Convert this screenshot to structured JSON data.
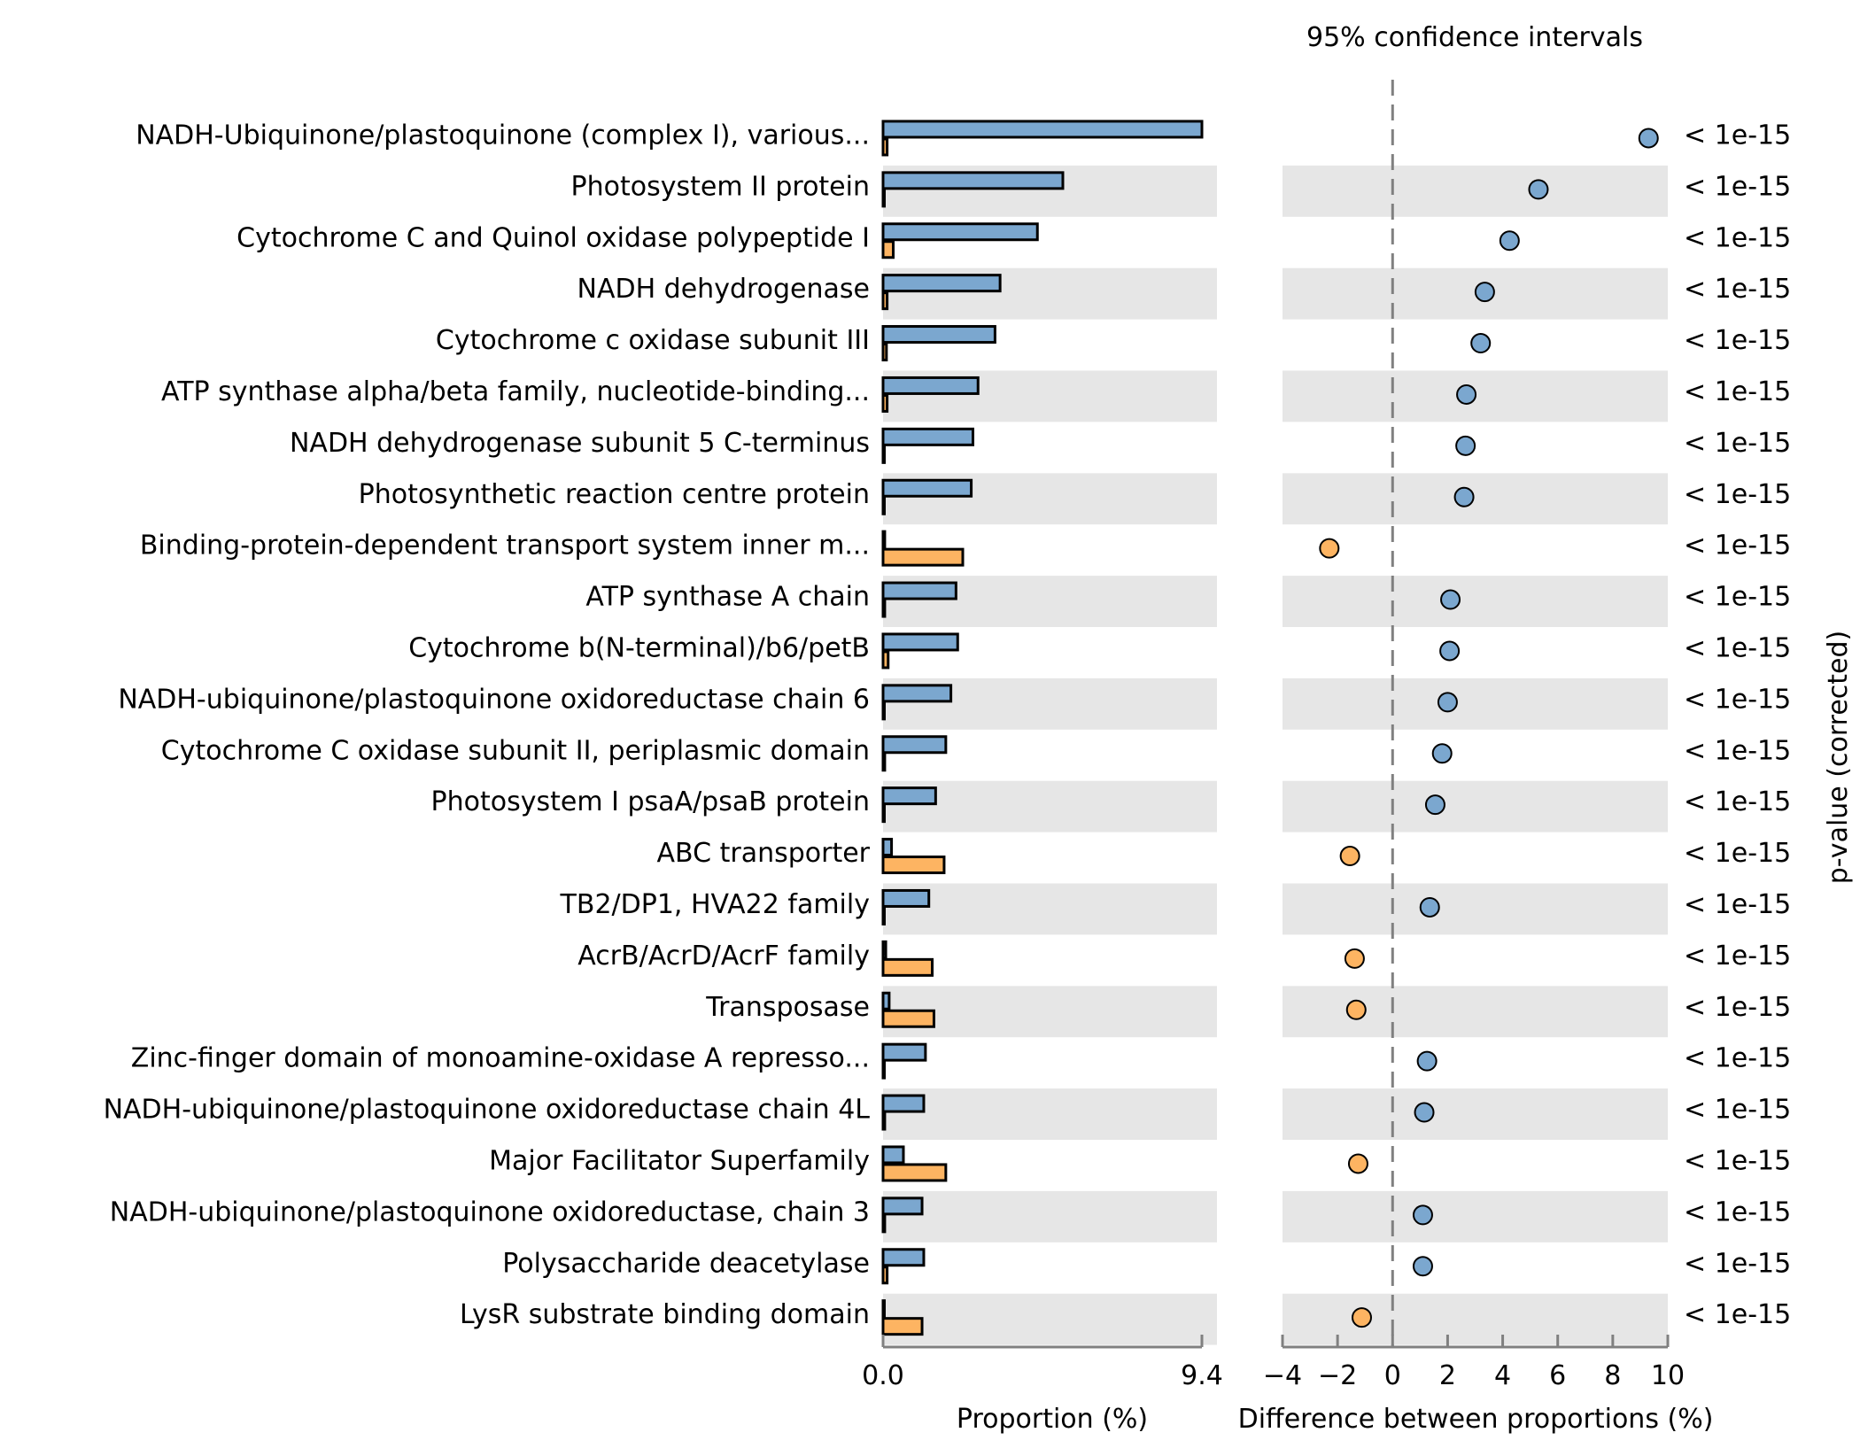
{
  "chart_data": {
    "type": "bar",
    "title": "95% confidence intervals",
    "left_xlabel": "Proportion (%)",
    "right_xlabel": "Difference between proportions (%)",
    "right_ylabel": "p-value (corrected)",
    "left_xticks": [
      "0.0",
      "9.4"
    ],
    "left_xlim": [
      0,
      9.4
    ],
    "right_xticks": [
      "−4",
      "−2",
      "0",
      "2",
      "4",
      "6",
      "8",
      "10"
    ],
    "right_xlim": [
      -4,
      10
    ],
    "colors": {
      "group_a": "#7ba7cf",
      "group_b": "#fdb462",
      "shade": "#e6e6e6",
      "zero_line": "#808080"
    },
    "categories": [
      "NADH-Ubiquinone/plastoquinone (complex I), various...",
      "Photosystem II protein",
      "Cytochrome C and Quinol oxidase polypeptide I",
      "NADH dehydrogenase",
      "Cytochrome c oxidase subunit III",
      "ATP synthase alpha/beta family, nucleotide-binding...",
      "NADH dehydrogenase subunit 5 C-terminus",
      "Photosynthetic reaction centre protein",
      "Binding-protein-dependent transport system inner m...",
      "ATP synthase A chain",
      "Cytochrome b(N-terminal)/b6/petB",
      "NADH-ubiquinone/plastoquinone oxidoreductase chain 6",
      "Cytochrome C oxidase subunit II, periplasmic domain",
      "Photosystem I psaA/psaB protein",
      "ABC transporter",
      "TB2/DP1, HVA22 family",
      "AcrB/AcrD/AcrF family",
      "Transposase",
      "Zinc-finger domain of monoamine-oxidase A represso...",
      "NADH-ubiquinone/plastoquinone oxidoreductase chain 4L",
      "Major Facilitator Superfamily",
      "NADH-ubiquinone/plastoquinone oxidoreductase, chain 3",
      "Polysaccharide deacetylase",
      "LysR substrate binding domain"
    ],
    "series": [
      {
        "values": [
          9.4,
          5.3,
          4.55,
          3.45,
          3.3,
          2.8,
          2.65,
          2.6,
          0.05,
          2.15,
          2.2,
          2.0,
          1.85,
          1.55,
          0.25,
          1.35,
          0.08,
          0.18,
          1.25,
          1.2,
          0.6,
          1.15,
          1.2,
          0.03
        ]
      },
      {
        "values": [
          0.12,
          0.02,
          0.3,
          0.12,
          0.1,
          0.12,
          0.03,
          0.01,
          2.35,
          0.05,
          0.15,
          0.03,
          0.05,
          0.02,
          1.8,
          0.03,
          1.45,
          1.5,
          0.02,
          0.05,
          1.85,
          0.05,
          0.12,
          1.15
        ]
      }
    ],
    "differences": [
      9.3,
      5.3,
      4.25,
      3.35,
      3.2,
      2.68,
      2.65,
      2.6,
      -2.3,
      2.1,
      2.07,
      2.0,
      1.8,
      1.55,
      -1.55,
      1.35,
      -1.38,
      -1.32,
      1.25,
      1.15,
      -1.25,
      1.1,
      1.1,
      -1.12
    ],
    "p_values": [
      "< 1e-15",
      "< 1e-15",
      "< 1e-15",
      "< 1e-15",
      "< 1e-15",
      "< 1e-15",
      "< 1e-15",
      "< 1e-15",
      "< 1e-15",
      "< 1e-15",
      "< 1e-15",
      "< 1e-15",
      "< 1e-15",
      "< 1e-15",
      "< 1e-15",
      "< 1e-15",
      "< 1e-15",
      "< 1e-15",
      "< 1e-15",
      "< 1e-15",
      "< 1e-15",
      "< 1e-15",
      "< 1e-15",
      "< 1e-15"
    ]
  }
}
